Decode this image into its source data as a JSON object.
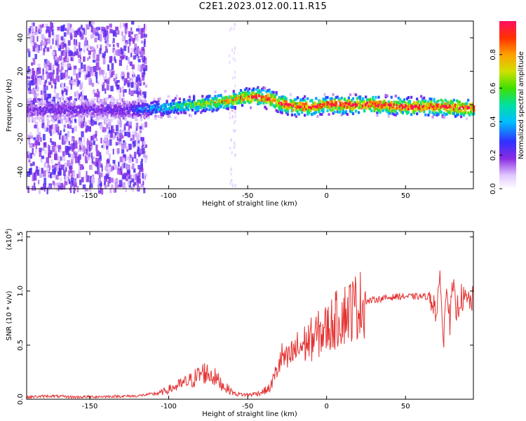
{
  "page": {
    "title": "C2E1.2023.012.00.11.R15"
  },
  "colors": {
    "snr_line": "#e53333",
    "axis": "#000000",
    "background": "#ffffff"
  },
  "chart_data": [
    {
      "type": "heatmap",
      "xlabel": "Height of straight line (km)",
      "ylabel": "Frequency (Hz)",
      "xlim": [
        -190,
        93
      ],
      "ylim": [
        -50,
        50
      ],
      "x_ticks": [
        -150,
        -100,
        -50,
        0,
        50
      ],
      "x_tick_labels": [
        "-150",
        "-100",
        "-50",
        "0",
        "50"
      ],
      "y_ticks": [
        -40,
        -20,
        0,
        20,
        40
      ],
      "y_tick_labels": [
        "-40",
        "-20",
        "0",
        "20",
        "40"
      ],
      "colorbar": {
        "label": "Normalized spectral amplitude",
        "ticks": [
          0.0,
          0.2,
          0.4,
          0.6,
          0.8
        ],
        "tick_labels": [
          "0.0",
          "0.2",
          "0.4",
          "0.6",
          "0.8"
        ],
        "range": [
          0,
          1
        ],
        "colormap": "rainbow"
      },
      "ridge_frequency": {
        "x": [
          -125,
          -110,
          -95,
          -85,
          -75,
          -65,
          -55,
          -45,
          -40,
          -35,
          -30,
          -20,
          -10,
          0,
          10,
          30,
          50,
          70,
          93
        ],
        "y": [
          -3,
          -2,
          -1,
          0,
          1,
          2,
          4,
          5,
          4,
          3,
          1,
          -1,
          -1,
          0,
          0,
          0,
          -1,
          -1,
          -2
        ]
      }
    },
    {
      "type": "line",
      "xlabel": "Height of straight line (km)",
      "ylabel": "SNR (10 * v/v)",
      "scale_note": "(x10",
      "scale_exp": "4",
      "scale_close": ")",
      "xlim": [
        -190,
        93
      ],
      "ylim": [
        0,
        15500
      ],
      "x_ticks": [
        -150,
        -100,
        -50,
        0,
        50
      ],
      "x_tick_labels": [
        "-150",
        "-100",
        "-50",
        "0",
        "50"
      ],
      "y_ticks": [
        0,
        5000,
        10000,
        15000
      ],
      "y_tick_labels": [
        "0.0",
        "0.5",
        "1.0",
        "1.5"
      ],
      "series": [
        {
          "x": [
            -190,
            -175,
            -160,
            -140,
            -120,
            -105,
            -95,
            -85,
            -78,
            -72,
            -65,
            -58,
            -50,
            -42,
            -36,
            -32,
            -28,
            -25,
            -20,
            -15,
            -10,
            -5,
            0,
            5,
            10,
            15,
            20,
            25,
            30,
            35,
            40,
            45,
            50,
            55,
            60,
            65,
            68,
            70,
            72,
            74,
            76,
            78,
            80,
            82,
            85,
            88,
            93
          ],
          "y": [
            200,
            300,
            200,
            250,
            300,
            600,
            1200,
            1800,
            2500,
            2200,
            1200,
            500,
            400,
            600,
            1000,
            2500,
            4000,
            3500,
            4500,
            5000,
            5500,
            6000,
            6500,
            7200,
            7800,
            8300,
            8700,
            9000,
            9200,
            9300,
            9400,
            9500,
            9500,
            9500,
            9500,
            9500,
            9000,
            7500,
            12000,
            4500,
            11500,
            7000,
            10500,
            8000,
            9500,
            9000,
            9200
          ]
        }
      ]
    }
  ]
}
